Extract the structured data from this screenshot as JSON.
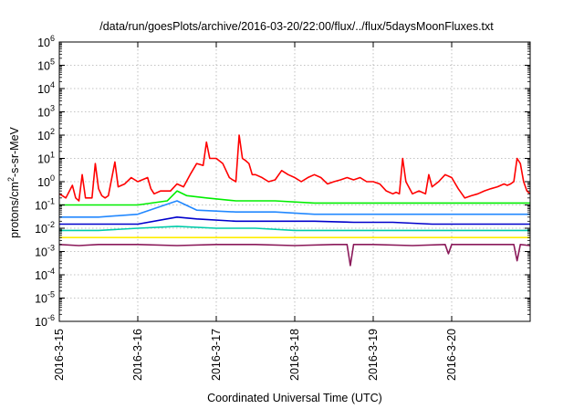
{
  "chart_data": {
    "type": "line",
    "title": "/data/run/goesPlots/archive/2016-03-20/22:00/flux/../flux/5daysMoonFluxes.txt",
    "xlabel": "Coordinated Universal Time (UTC)",
    "ylabel": "protons/cm²-s-sr-MeV",
    "ylabel_parts": {
      "base": "protons/cm",
      "sup": "2",
      "rest": "-s-sr-MeV"
    },
    "yscale": "log",
    "ylim_exp": [
      -6,
      6
    ],
    "ytick_exps": [
      "-6",
      "-5",
      "-4",
      "-3",
      "-2",
      "-1",
      "0",
      "1",
      "2",
      "3",
      "4",
      "5",
      "6"
    ],
    "ytick_base": "10",
    "xlim": [
      "2016-03-15",
      "2016-03-21"
    ],
    "xticks": [
      "2016-3-15",
      "2016-3-16",
      "2016-3-17",
      "2016-3-18",
      "2016-3-19",
      "2016-3-20"
    ],
    "grid": true,
    "legend": "none",
    "series": [
      {
        "color": "#ff0000",
        "points": [
          [
            "2016-03-15 00:00",
            0.3
          ],
          [
            "2016-03-15 02:00",
            0.2
          ],
          [
            "2016-03-15 04:00",
            0.7
          ],
          [
            "2016-03-15 05:00",
            0.2
          ],
          [
            "2016-03-15 06:00",
            0.15
          ],
          [
            "2016-03-15 07:00",
            2
          ],
          [
            "2016-03-15 08:00",
            0.2
          ],
          [
            "2016-03-15 09:00",
            0.2
          ],
          [
            "2016-03-15 10:00",
            0.2
          ],
          [
            "2016-03-15 11:00",
            6
          ],
          [
            "2016-03-15 12:00",
            0.5
          ],
          [
            "2016-03-15 13:00",
            0.25
          ],
          [
            "2016-03-15 14:00",
            0.2
          ],
          [
            "2016-03-15 15:00",
            0.25
          ],
          [
            "2016-03-15 17:00",
            7
          ],
          [
            "2016-03-15 18:00",
            0.6
          ],
          [
            "2016-03-15 20:00",
            0.8
          ],
          [
            "2016-03-15 22:00",
            1.5
          ],
          [
            "2016-03-16 00:00",
            1.0
          ],
          [
            "2016-03-16 03:00",
            1.5
          ],
          [
            "2016-03-16 04:00",
            0.5
          ],
          [
            "2016-03-16 05:00",
            0.3
          ],
          [
            "2016-03-16 07:00",
            0.4
          ],
          [
            "2016-03-16 09:00",
            0.4
          ],
          [
            "2016-03-16 10:00",
            0.4
          ],
          [
            "2016-03-16 12:00",
            0.8
          ],
          [
            "2016-03-16 14:00",
            0.6
          ],
          [
            "2016-03-16 16:00",
            2
          ],
          [
            "2016-03-16 18:00",
            6
          ],
          [
            "2016-03-16 20:00",
            5
          ],
          [
            "2016-03-16 21:00",
            50
          ],
          [
            "2016-03-16 22:00",
            10
          ],
          [
            "2016-03-17 00:00",
            10
          ],
          [
            "2016-03-17 02:00",
            6
          ],
          [
            "2016-03-17 03:00",
            3
          ],
          [
            "2016-03-17 04:00",
            1.5
          ],
          [
            "2016-03-17 05:00",
            1.2
          ],
          [
            "2016-03-17 06:00",
            1
          ],
          [
            "2016-03-17 07:00",
            100
          ],
          [
            "2016-03-17 08:00",
            10
          ],
          [
            "2016-03-17 09:00",
            8
          ],
          [
            "2016-03-17 10:00",
            6
          ],
          [
            "2016-03-17 11:00",
            2
          ],
          [
            "2016-03-17 12:00",
            2
          ],
          [
            "2016-03-17 14:00",
            1.5
          ],
          [
            "2016-03-17 16:00",
            1
          ],
          [
            "2016-03-17 18:00",
            1.2
          ],
          [
            "2016-03-17 20:00",
            3
          ],
          [
            "2016-03-17 22:00",
            2
          ],
          [
            "2016-03-18 00:00",
            1.5
          ],
          [
            "2016-03-18 02:00",
            1
          ],
          [
            "2016-03-18 04:00",
            1.5
          ],
          [
            "2016-03-18 06:00",
            2
          ],
          [
            "2016-03-18 08:00",
            1.5
          ],
          [
            "2016-03-18 10:00",
            0.8
          ],
          [
            "2016-03-18 12:00",
            1
          ],
          [
            "2016-03-18 14:00",
            1.2
          ],
          [
            "2016-03-18 16:00",
            1.5
          ],
          [
            "2016-03-18 18:00",
            1.2
          ],
          [
            "2016-03-18 20:00",
            1.5
          ],
          [
            "2016-03-18 22:00",
            1
          ],
          [
            "2016-03-19 00:00",
            1
          ],
          [
            "2016-03-19 02:00",
            0.8
          ],
          [
            "2016-03-19 04:00",
            0.4
          ],
          [
            "2016-03-19 06:00",
            0.3
          ],
          [
            "2016-03-19 07:00",
            0.35
          ],
          [
            "2016-03-19 08:00",
            0.3
          ],
          [
            "2016-03-19 09:00",
            10
          ],
          [
            "2016-03-19 10:00",
            1
          ],
          [
            "2016-03-19 12:00",
            0.3
          ],
          [
            "2016-03-19 14:00",
            0.4
          ],
          [
            "2016-03-19 16:00",
            0.3
          ],
          [
            "2016-03-19 17:00",
            2
          ],
          [
            "2016-03-19 18:00",
            0.6
          ],
          [
            "2016-03-19 20:00",
            1
          ],
          [
            "2016-03-19 22:00",
            2
          ],
          [
            "2016-03-20 00:00",
            1.5
          ],
          [
            "2016-03-20 02:00",
            0.5
          ],
          [
            "2016-03-20 04:00",
            0.2
          ],
          [
            "2016-03-20 06:00",
            0.25
          ],
          [
            "2016-03-20 08:00",
            0.3
          ],
          [
            "2016-03-20 10:00",
            0.4
          ],
          [
            "2016-03-20 12:00",
            0.5
          ],
          [
            "2016-03-20 14:00",
            0.6
          ],
          [
            "2016-03-20 16:00",
            0.8
          ],
          [
            "2016-03-20 17:00",
            0.7
          ],
          [
            "2016-03-20 18:00",
            0.8
          ],
          [
            "2016-03-20 19:00",
            1
          ],
          [
            "2016-03-20 20:00",
            10
          ],
          [
            "2016-03-20 21:00",
            6
          ],
          [
            "2016-03-20 22:00",
            1
          ],
          [
            "2016-03-20 23:00",
            0.4
          ],
          [
            "2016-03-21 00:00",
            0.3
          ]
        ]
      },
      {
        "color": "#00ee00",
        "points": [
          [
            "2016-03-15 00:00",
            0.1
          ],
          [
            "2016-03-15 12:00",
            0.1
          ],
          [
            "2016-03-16 00:00",
            0.1
          ],
          [
            "2016-03-16 09:00",
            0.15
          ],
          [
            "2016-03-16 12:00",
            0.4
          ],
          [
            "2016-03-16 15:00",
            0.25
          ],
          [
            "2016-03-16 21:00",
            0.2
          ],
          [
            "2016-03-17 06:00",
            0.15
          ],
          [
            "2016-03-17 18:00",
            0.15
          ],
          [
            "2016-03-18 06:00",
            0.12
          ],
          [
            "2016-03-18 18:00",
            0.12
          ],
          [
            "2016-03-19 06:00",
            0.12
          ],
          [
            "2016-03-19 18:00",
            0.12
          ],
          [
            "2016-03-20 06:00",
            0.12
          ],
          [
            "2016-03-20 18:00",
            0.12
          ],
          [
            "2016-03-21 00:00",
            0.12
          ]
        ]
      },
      {
        "color": "#2288ff",
        "points": [
          [
            "2016-03-15 00:00",
            0.03
          ],
          [
            "2016-03-15 12:00",
            0.03
          ],
          [
            "2016-03-16 00:00",
            0.04
          ],
          [
            "2016-03-16 12:00",
            0.15
          ],
          [
            "2016-03-16 18:00",
            0.06
          ],
          [
            "2016-03-17 06:00",
            0.05
          ],
          [
            "2016-03-17 18:00",
            0.05
          ],
          [
            "2016-03-18 06:00",
            0.04
          ],
          [
            "2016-03-18 18:00",
            0.04
          ],
          [
            "2016-03-19 06:00",
            0.04
          ],
          [
            "2016-03-19 18:00",
            0.04
          ],
          [
            "2016-03-20 06:00",
            0.04
          ],
          [
            "2016-03-20 18:00",
            0.04
          ],
          [
            "2016-03-21 00:00",
            0.04
          ]
        ]
      },
      {
        "color": "#0000cc",
        "points": [
          [
            "2016-03-15 00:00",
            0.015
          ],
          [
            "2016-03-15 12:00",
            0.015
          ],
          [
            "2016-03-16 00:00",
            0.015
          ],
          [
            "2016-03-16 12:00",
            0.03
          ],
          [
            "2016-03-16 18:00",
            0.025
          ],
          [
            "2016-03-17 06:00",
            0.02
          ],
          [
            "2016-03-17 18:00",
            0.02
          ],
          [
            "2016-03-18 06:00",
            0.02
          ],
          [
            "2016-03-18 18:00",
            0.018
          ],
          [
            "2016-03-19 06:00",
            0.018
          ],
          [
            "2016-03-19 18:00",
            0.015
          ],
          [
            "2016-03-20 06:00",
            0.015
          ],
          [
            "2016-03-20 18:00",
            0.015
          ],
          [
            "2016-03-21 00:00",
            0.015
          ]
        ]
      },
      {
        "color": "#00ccaa",
        "points": [
          [
            "2016-03-15 00:00",
            0.008
          ],
          [
            "2016-03-15 12:00",
            0.008
          ],
          [
            "2016-03-16 00:00",
            0.01
          ],
          [
            "2016-03-16 12:00",
            0.012
          ],
          [
            "2016-03-17 00:00",
            0.01
          ],
          [
            "2016-03-17 12:00",
            0.01
          ],
          [
            "2016-03-18 00:00",
            0.008
          ],
          [
            "2016-03-18 12:00",
            0.008
          ],
          [
            "2016-03-19 00:00",
            0.008
          ],
          [
            "2016-03-19 12:00",
            0.008
          ],
          [
            "2016-03-20 00:00",
            0.008
          ],
          [
            "2016-03-20 12:00",
            0.008
          ],
          [
            "2016-03-21 00:00",
            0.008
          ]
        ]
      },
      {
        "color": "#ffee00",
        "points": [
          [
            "2016-03-15 00:00",
            0.004
          ],
          [
            "2016-03-16 00:00",
            0.004
          ],
          [
            "2016-03-17 00:00",
            0.004
          ],
          [
            "2016-03-18 00:00",
            0.004
          ],
          [
            "2016-03-19 00:00",
            0.004
          ],
          [
            "2016-03-20 00:00",
            0.004
          ],
          [
            "2016-03-21 00:00",
            0.004
          ]
        ]
      },
      {
        "color": "#8b1a5a",
        "points": [
          [
            "2016-03-15 00:00",
            0.002
          ],
          [
            "2016-03-15 06:00",
            0.0018
          ],
          [
            "2016-03-15 12:00",
            0.002
          ],
          [
            "2016-03-16 00:00",
            0.002
          ],
          [
            "2016-03-16 12:00",
            0.0018
          ],
          [
            "2016-03-17 00:00",
            0.002
          ],
          [
            "2016-03-17 12:00",
            0.002
          ],
          [
            "2016-03-18 00:00",
            0.0018
          ],
          [
            "2016-03-18 12:00",
            0.002
          ],
          [
            "2016-03-18 16:00",
            0.002
          ],
          [
            "2016-03-18 17:00",
            0.00025
          ],
          [
            "2016-03-18 18:00",
            0.002
          ],
          [
            "2016-03-19 00:00",
            0.002
          ],
          [
            "2016-03-19 12:00",
            0.0018
          ],
          [
            "2016-03-19 22:00",
            0.002
          ],
          [
            "2016-03-19 23:00",
            0.0008
          ],
          [
            "2016-03-20 00:00",
            0.002
          ],
          [
            "2016-03-20 12:00",
            0.002
          ],
          [
            "2016-03-20 19:00",
            0.002
          ],
          [
            "2016-03-20 20:00",
            0.0004
          ],
          [
            "2016-03-20 21:00",
            0.002
          ],
          [
            "2016-03-21 00:00",
            0.0018
          ]
        ]
      }
    ]
  }
}
